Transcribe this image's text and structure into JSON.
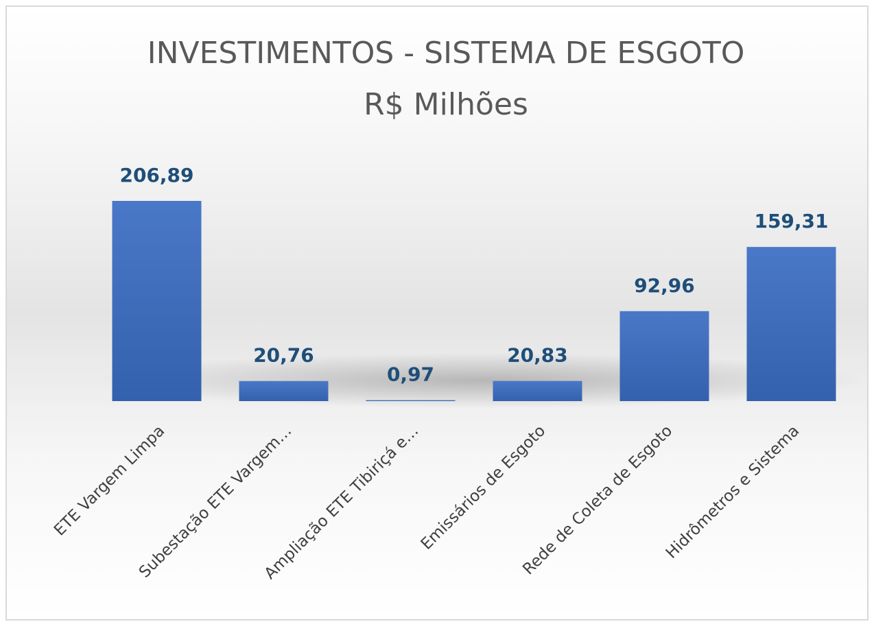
{
  "chart_data": {
    "type": "bar",
    "title": "INVESTIMENTOS - SISTEMA DE ESGOTO",
    "subtitle": "R$ Milhões",
    "categories": [
      "ETE Vargem Limpa",
      "Subestação ETE Vargem…",
      "Ampliação ETE Tibiriçá e…",
      "Emissários de Esgoto",
      "Rede de Coleta de Esgoto",
      "Hidrômetros e Sistema"
    ],
    "values": [
      206.89,
      20.76,
      0.97,
      20.83,
      92.96,
      159.31
    ],
    "value_labels": [
      "206,89",
      "20,76",
      "0,97",
      "20,83",
      "92,96",
      "159,31"
    ],
    "color": "#4472c4"
  }
}
